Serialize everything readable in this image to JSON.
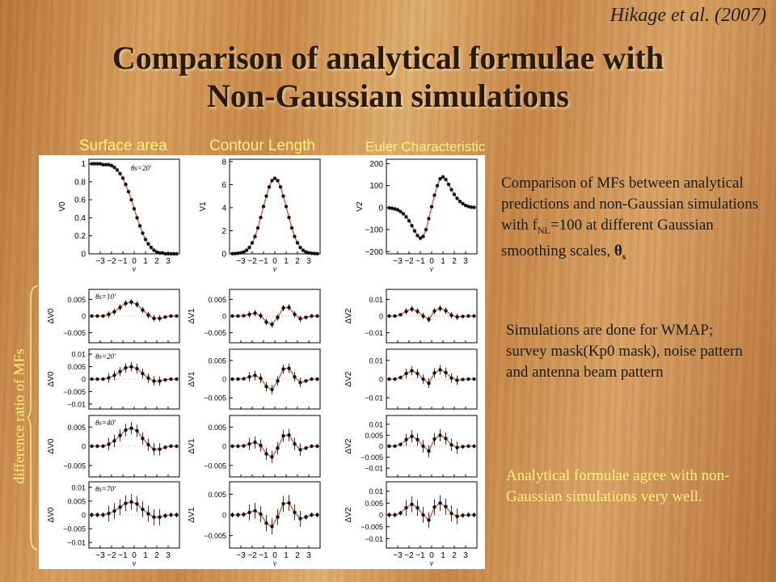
{
  "citation": "Hikage et al. (2007)",
  "title_line1": "Comparison of analytical formulae with",
  "title_line2": "Non-Gaussian simulations",
  "col_labels": [
    "Surface area",
    "Contour Length",
    "Euler Characteristic"
  ],
  "side_label": "difference ratio of MFs",
  "text1_pre": "Comparison of MFs  between analytical predictions and non-Gaussian simulations with f",
  "text1_sub": "NL",
  "text1_mid": "=100 at different Gaussian smoothing scales, ",
  "text1_theta": "θ",
  "text1_thetasub": "s",
  "text2": "Simulations are done for WMAP; survey mask(Kp0 mask), noise pattern and antenna beam pattern",
  "text3": "Analytical formulae agree with non-Gaussian simulations very well.",
  "colors": {
    "curve": "#d9532a",
    "dots": "#111111",
    "highlight": "#fff27a"
  },
  "chart_data": [
    {
      "type": "line",
      "panel": "V0",
      "ylabel": "V0",
      "annotation": "θs=20'",
      "xlabel": "ν",
      "x_ticks": [
        "−3",
        "−2",
        "−1",
        "0",
        "1",
        "2",
        "3"
      ],
      "y_ticks": [
        "0",
        "0.2",
        "0.4",
        "0.6",
        "0.8",
        "1"
      ],
      "ylim": [
        0,
        1.05
      ],
      "x": [
        -3.75,
        -3.5,
        -3.25,
        -3,
        -2.75,
        -2.5,
        -2.25,
        -2,
        -1.75,
        -1.5,
        -1.25,
        -1,
        -0.75,
        -0.5,
        -0.25,
        0,
        0.25,
        0.5,
        0.75,
        1,
        1.25,
        1.5,
        1.75,
        2,
        2.25,
        2.5,
        2.75,
        3,
        3.25,
        3.5,
        3.75
      ],
      "y": [
        1,
        1,
        1,
        1,
        0.99,
        0.99,
        0.99,
        0.98,
        0.96,
        0.93,
        0.89,
        0.84,
        0.77,
        0.69,
        0.6,
        0.5,
        0.4,
        0.31,
        0.23,
        0.16,
        0.11,
        0.07,
        0.04,
        0.02,
        0.01,
        0.01,
        0,
        0,
        0,
        0,
        0
      ]
    },
    {
      "type": "line",
      "panel": "V1",
      "ylabel": "V1",
      "xlabel": "ν",
      "x_ticks": [
        "−3",
        "−2",
        "−1",
        "0",
        "1",
        "2",
        "3"
      ],
      "y_ticks": [
        "0",
        "2",
        "4",
        "6",
        "8"
      ],
      "ylim": [
        0,
        8.2
      ],
      "x": [
        -3.75,
        -3.5,
        -3.25,
        -3,
        -2.75,
        -2.5,
        -2.25,
        -2,
        -1.75,
        -1.5,
        -1.25,
        -1,
        -0.75,
        -0.5,
        -0.25,
        0,
        0.25,
        0.5,
        0.75,
        1,
        1.25,
        1.5,
        1.75,
        2,
        2.25,
        2.5,
        2.75,
        3,
        3.25,
        3.5,
        3.75
      ],
      "y": [
        0.01,
        0.02,
        0.05,
        0.08,
        0.16,
        0.3,
        0.55,
        0.95,
        1.5,
        2.25,
        3.15,
        4.1,
        5.0,
        5.8,
        6.35,
        6.55,
        6.35,
        5.8,
        5.0,
        4.1,
        3.15,
        2.25,
        1.5,
        0.95,
        0.55,
        0.3,
        0.16,
        0.08,
        0.05,
        0.02,
        0.01
      ]
    },
    {
      "type": "line",
      "panel": "V2",
      "ylabel": "V2",
      "xlabel": "ν",
      "x_ticks": [
        "−3",
        "−2",
        "−1",
        "0",
        "1",
        "2",
        "3"
      ],
      "y_ticks": [
        "−200",
        "−100",
        "0",
        "100",
        "200"
      ],
      "ylim": [
        -210,
        220
      ],
      "x": [
        -3.75,
        -3.5,
        -3.25,
        -3,
        -2.75,
        -2.5,
        -2.25,
        -2,
        -1.75,
        -1.5,
        -1.25,
        -1,
        -0.75,
        -0.5,
        -0.25,
        0,
        0.25,
        0.5,
        0.75,
        1,
        1.25,
        1.5,
        1.75,
        2,
        2.25,
        2.5,
        2.75,
        3,
        3.25,
        3.5,
        3.75
      ],
      "y": [
        -1,
        -3,
        -6,
        -10,
        -18,
        -28,
        -42,
        -60,
        -82,
        -106,
        -127,
        -139,
        -131,
        -100,
        -50,
        4,
        56,
        100,
        131,
        140,
        128,
        106,
        82,
        60,
        42,
        28,
        18,
        10,
        5,
        2,
        1
      ]
    },
    {
      "type": "line",
      "panel": "dV0_10",
      "ylabel": "ΔV0",
      "annotation": "θs=10'",
      "y_ticks": [
        "−0.005",
        "0",
        "0.005"
      ],
      "ylim": [
        -0.008,
        0.008
      ],
      "x": [
        -3.75,
        -3.25,
        -2.75,
        -2.25,
        -1.75,
        -1.25,
        -0.75,
        -0.25,
        0.25,
        0.75,
        1.25,
        1.75,
        2.25,
        2.75,
        3.25,
        3.75
      ],
      "y": [
        0,
        0,
        0,
        0.0005,
        0.0013,
        0.0026,
        0.0038,
        0.0042,
        0.0035,
        0.0018,
        0.0003,
        -0.0007,
        -0.0007,
        -0.0003,
        0,
        0
      ]
    },
    {
      "type": "line",
      "panel": "dV1_10",
      "ylabel": "ΔV1",
      "y_ticks": [
        "−0.005",
        "0",
        "0.005"
      ],
      "ylim": [
        -0.008,
        0.008
      ],
      "x": [
        -3.75,
        -3.25,
        -2.75,
        -2.25,
        -1.75,
        -1.25,
        -0.75,
        -0.25,
        0.25,
        0.75,
        1.25,
        1.75,
        2.25,
        2.75,
        3.25,
        3.75
      ],
      "y": [
        0,
        0,
        0.0001,
        0.0005,
        0.0009,
        0.0001,
        -0.0018,
        -0.0025,
        -0.0004,
        0.0024,
        0.0026,
        0.0005,
        -0.0008,
        -0.0004,
        0,
        0
      ]
    },
    {
      "type": "line",
      "panel": "dV2_10",
      "ylabel": "ΔV2",
      "y_ticks": [
        "−0.01",
        "0",
        "0.01"
      ],
      "ylim": [
        -0.016,
        0.016
      ],
      "x": [
        -3.75,
        -3.25,
        -2.75,
        -2.25,
        -1.75,
        -1.25,
        -0.75,
        -0.25,
        0.25,
        0.75,
        1.25,
        1.75,
        2.25,
        2.75,
        3.25,
        3.75
      ],
      "y": [
        0,
        0,
        0.0008,
        0.0028,
        0.0042,
        0.0028,
        0,
        -0.002,
        0.003,
        0.0046,
        0.0032,
        0.0005,
        -0.0005,
        -0.0002,
        0,
        0
      ]
    },
    {
      "type": "line",
      "panel": "dV0_20",
      "ylabel": "ΔV0",
      "annotation": "θs=20'",
      "y_ticks": [
        "−0.01",
        "−0.005",
        "0",
        "0.005",
        "0.01"
      ],
      "ylim": [
        -0.012,
        0.012
      ],
      "x": [
        -3.75,
        -3.25,
        -2.75,
        -2.25,
        -1.75,
        -1.25,
        -0.75,
        -0.25,
        0.25,
        0.75,
        1.25,
        1.75,
        2.25,
        2.75,
        3.25,
        3.75
      ],
      "y": [
        0,
        0,
        0,
        0.0005,
        0.0015,
        0.003,
        0.0045,
        0.005,
        0.0042,
        0.0022,
        0.0004,
        -0.0008,
        -0.0008,
        -0.0003,
        0,
        0
      ]
    },
    {
      "type": "line",
      "panel": "dV1_20",
      "ylabel": "ΔV1",
      "y_ticks": [
        "−0.005",
        "0",
        "0.005"
      ],
      "ylim": [
        -0.008,
        0.008
      ],
      "x": [
        -3.75,
        -3.25,
        -2.75,
        -2.25,
        -1.75,
        -1.25,
        -0.75,
        -0.25,
        0.25,
        0.75,
        1.25,
        1.75,
        2.25,
        2.75,
        3.25,
        3.75
      ],
      "y": [
        0,
        0,
        0.0001,
        0.0006,
        0.001,
        0.0002,
        -0.002,
        -0.0028,
        -0.0005,
        0.0027,
        0.0029,
        0.0006,
        -0.0009,
        -0.0005,
        0,
        0
      ]
    },
    {
      "type": "line",
      "panel": "dV2_20",
      "ylabel": "ΔV2",
      "y_ticks": [
        "−0.01",
        "0",
        "0.01"
      ],
      "ylim": [
        -0.016,
        0.016
      ],
      "x": [
        -3.75,
        -3.25,
        -2.75,
        -2.25,
        -1.75,
        -1.25,
        -0.75,
        -0.25,
        0.25,
        0.75,
        1.25,
        1.75,
        2.25,
        2.75,
        3.25,
        3.75
      ],
      "y": [
        0,
        0,
        0.0009,
        0.003,
        0.0045,
        0.003,
        0,
        -0.0022,
        0.0033,
        0.005,
        0.0035,
        0.0006,
        -0.0006,
        -0.0002,
        0,
        0
      ]
    },
    {
      "type": "line",
      "panel": "dV0_40",
      "ylabel": "ΔV0",
      "annotation": "θs=40'",
      "y_ticks": [
        "−0.005",
        "0",
        "0.005"
      ],
      "ylim": [
        -0.008,
        0.008
      ],
      "x": [
        -3.75,
        -3.25,
        -2.75,
        -2.25,
        -1.75,
        -1.25,
        -0.75,
        -0.25,
        0.25,
        0.75,
        1.25,
        1.75,
        2.25,
        2.75,
        3.25,
        3.75
      ],
      "y": [
        0,
        0,
        0,
        0.0005,
        0.0014,
        0.0028,
        0.0042,
        0.0047,
        0.004,
        0.002,
        0.0004,
        -0.0008,
        -0.0008,
        -0.0003,
        0,
        0
      ]
    },
    {
      "type": "line",
      "panel": "dV1_40",
      "ylabel": "ΔV1",
      "y_ticks": [
        "−0.005",
        "0",
        "0.005"
      ],
      "ylim": [
        -0.008,
        0.008
      ],
      "x": [
        -3.75,
        -3.25,
        -2.75,
        -2.25,
        -1.75,
        -1.25,
        -0.75,
        -0.25,
        0.25,
        0.75,
        1.25,
        1.75,
        2.25,
        2.75,
        3.25,
        3.75
      ],
      "y": [
        0,
        0,
        0.0001,
        0.0006,
        0.001,
        0.0002,
        -0.002,
        -0.0028,
        -0.0005,
        0.0027,
        0.0029,
        0.0006,
        -0.0009,
        -0.0005,
        0,
        0
      ]
    },
    {
      "type": "line",
      "panel": "dV2_40",
      "ylabel": "ΔV2",
      "y_ticks": [
        "−0.01",
        "−0.005",
        "0",
        "0.005",
        "0.01"
      ],
      "ylim": [
        -0.014,
        0.014
      ],
      "x": [
        -3.75,
        -3.25,
        -2.75,
        -2.25,
        -1.75,
        -1.25,
        -0.75,
        -0.25,
        0.25,
        0.75,
        1.25,
        1.75,
        2.25,
        2.75,
        3.25,
        3.75
      ],
      "y": [
        0,
        0,
        0.0008,
        0.003,
        0.0045,
        0.003,
        0,
        -0.0022,
        0.0033,
        0.005,
        0.0035,
        0.0006,
        -0.0006,
        -0.0002,
        0,
        0
      ]
    },
    {
      "type": "line",
      "panel": "dV0_70",
      "ylabel": "ΔV0",
      "annotation": "θs=70'",
      "y_ticks": [
        "−0.01",
        "−0.005",
        "0",
        "0.005",
        "0.01"
      ],
      "ylim": [
        -0.012,
        0.012
      ],
      "x": [
        -3.75,
        -3.25,
        -2.75,
        -2.25,
        -1.75,
        -1.25,
        -0.75,
        -0.25,
        0.25,
        0.75,
        1.25,
        1.75,
        2.25,
        2.75,
        3.25,
        3.75
      ],
      "y": [
        0,
        0,
        0,
        0.0005,
        0.0014,
        0.0028,
        0.0042,
        0.0047,
        0.004,
        0.002,
        0.0004,
        -0.0008,
        -0.0008,
        -0.0003,
        0,
        0
      ]
    },
    {
      "type": "line",
      "panel": "dV1_70",
      "ylabel": "ΔV1",
      "y_ticks": [
        "−0.005",
        "0",
        "0.005"
      ],
      "ylim": [
        -0.008,
        0.008
      ],
      "x": [
        -3.75,
        -3.25,
        -2.75,
        -2.25,
        -1.75,
        -1.25,
        -0.75,
        -0.25,
        0.25,
        0.75,
        1.25,
        1.75,
        2.25,
        2.75,
        3.25,
        3.75
      ],
      "y": [
        0,
        0,
        0.0001,
        0.0006,
        0.001,
        0.0002,
        -0.002,
        -0.0028,
        -0.0005,
        0.0027,
        0.0029,
        0.0006,
        -0.0009,
        -0.0005,
        0,
        0
      ]
    },
    {
      "type": "line",
      "panel": "dV2_70",
      "ylabel": "ΔV2",
      "y_ticks": [
        "−0.01",
        "−0.005",
        "0",
        "0.005",
        "0.01"
      ],
      "ylim": [
        -0.014,
        0.014
      ],
      "x": [
        -3.75,
        -3.25,
        -2.75,
        -2.25,
        -1.75,
        -1.25,
        -0.75,
        -0.25,
        0.25,
        0.75,
        1.25,
        1.75,
        2.25,
        2.75,
        3.25,
        3.75
      ],
      "y": [
        0,
        0,
        0.0008,
        0.003,
        0.0045,
        0.003,
        0,
        -0.0022,
        0.0033,
        0.005,
        0.0035,
        0.0006,
        -0.0006,
        -0.0002,
        0,
        0
      ]
    }
  ]
}
